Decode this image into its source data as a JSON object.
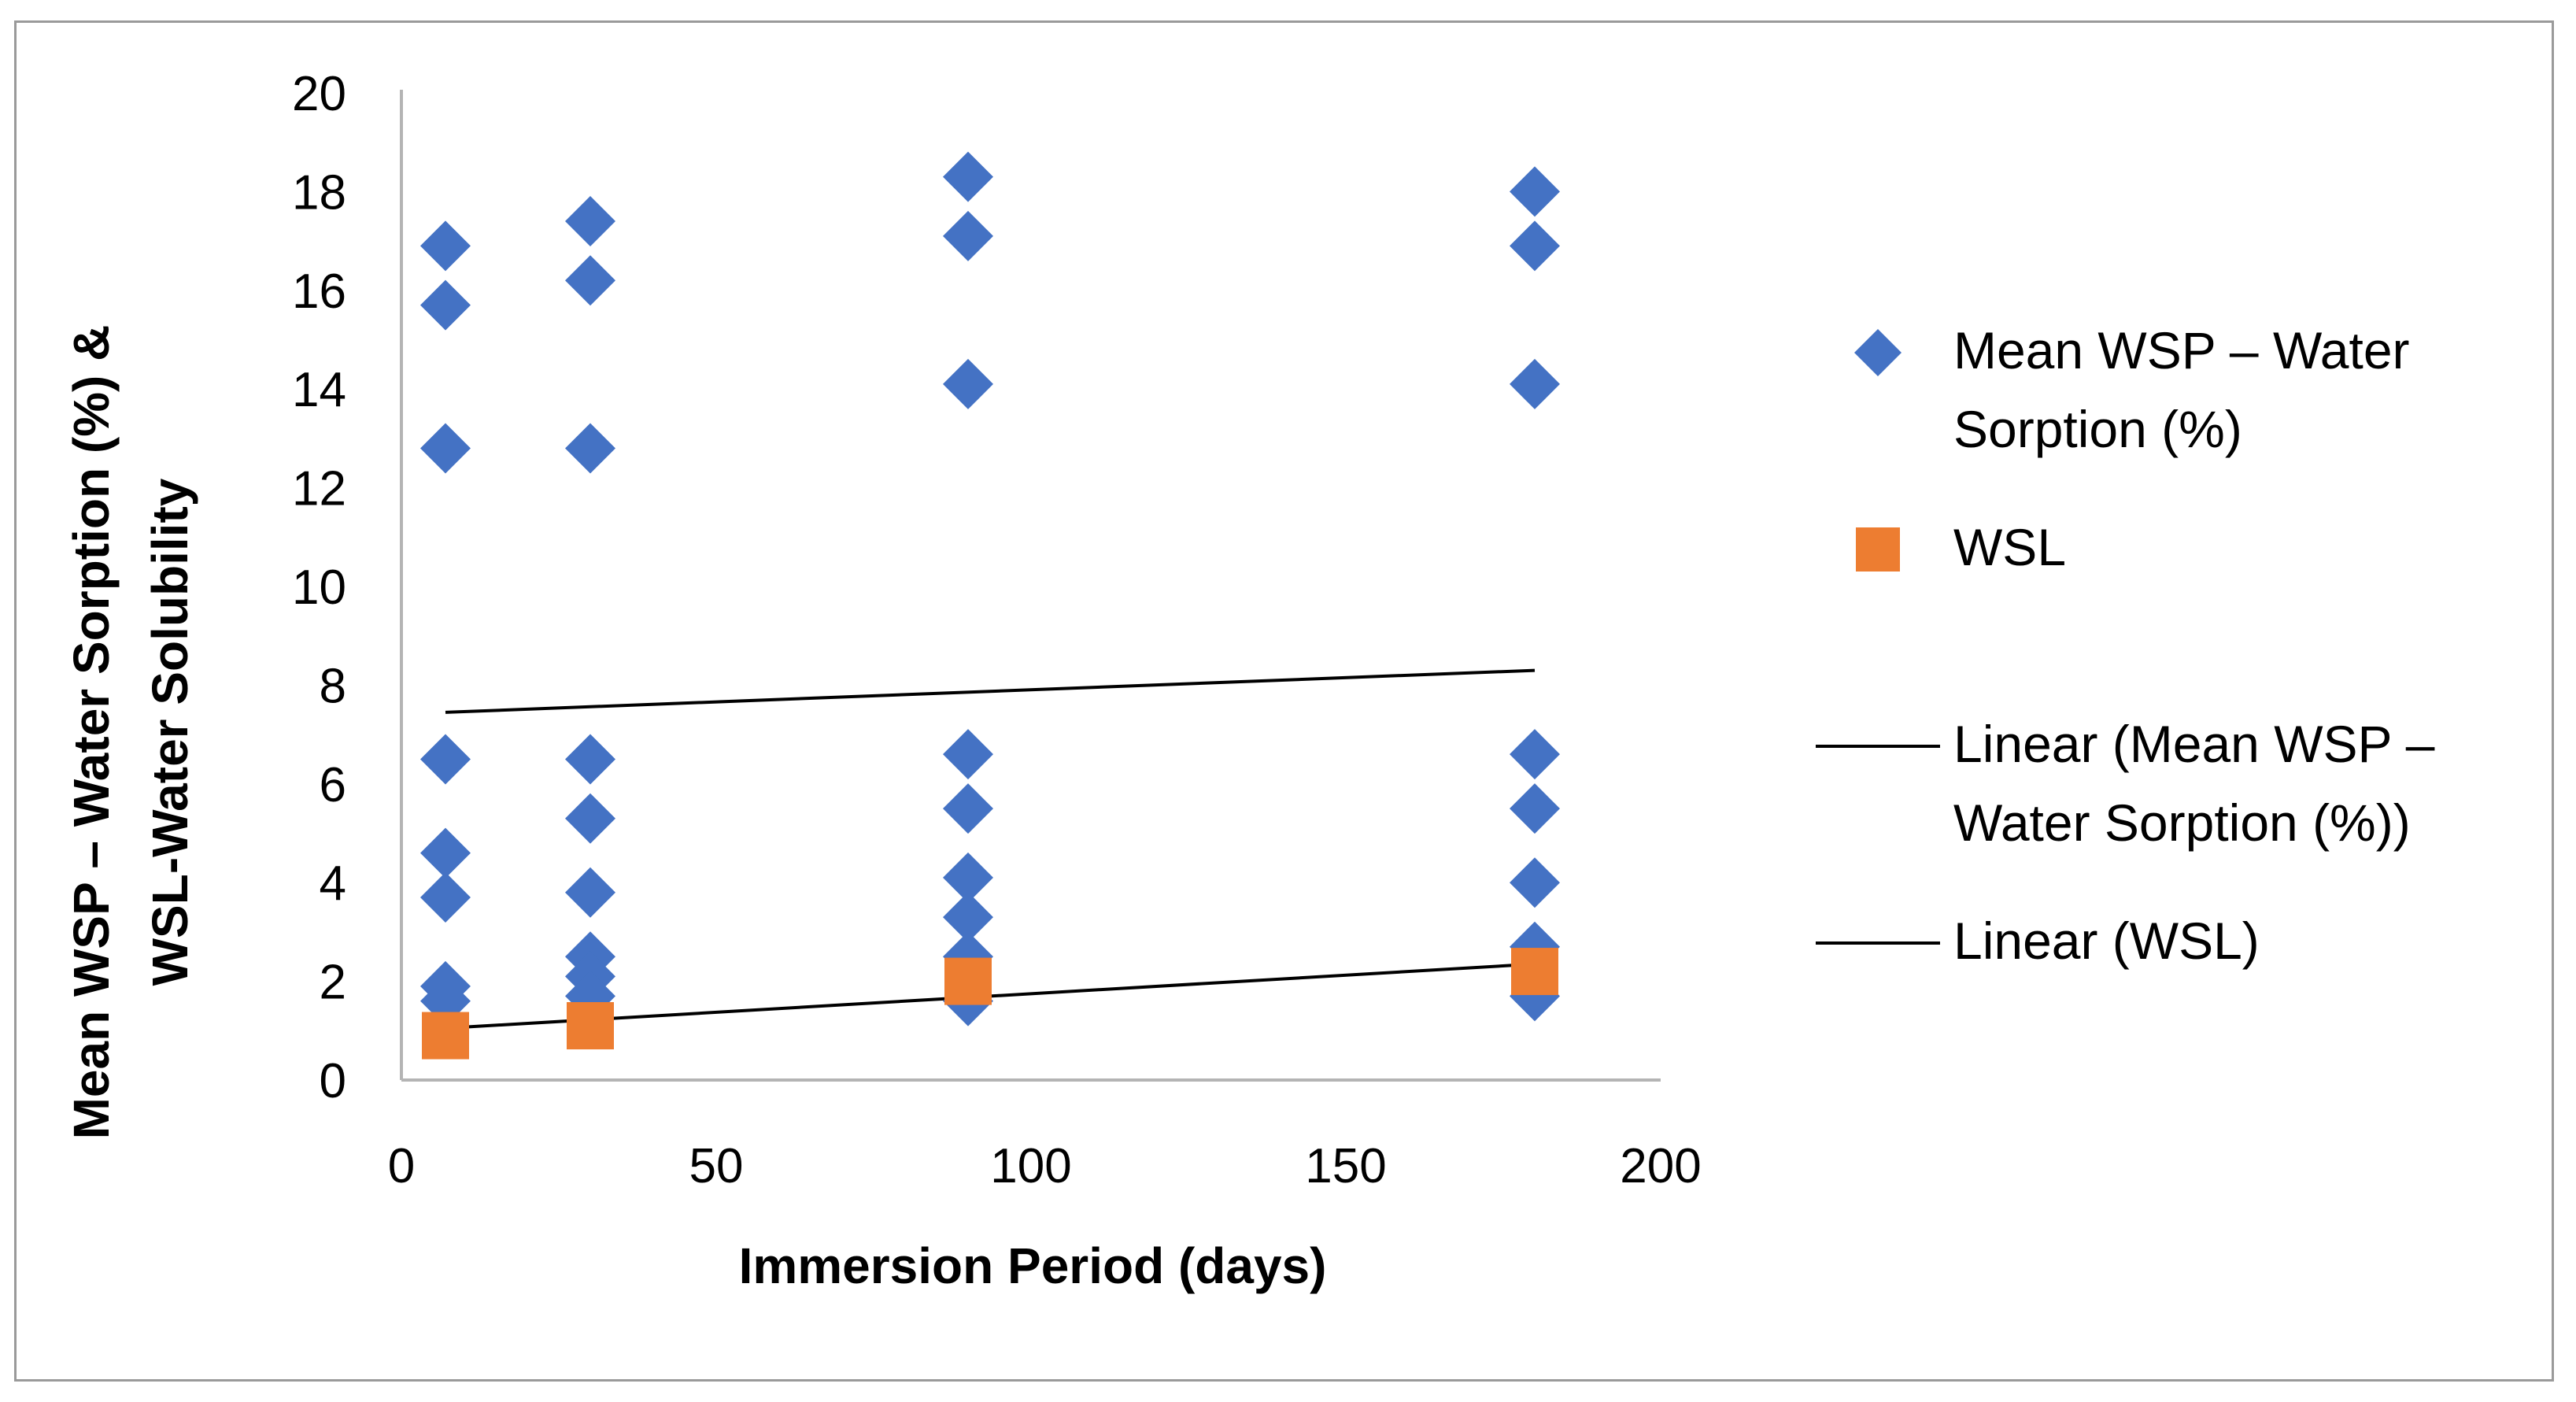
{
  "chart_data": {
    "type": "scatter",
    "xlabel": "Immersion Period (days)",
    "ylabel_lines": [
      "Mean WSP – Water Sorption (%) &",
      "WSL-Water Solubility"
    ],
    "xlim": [
      0,
      200
    ],
    "ylim": [
      0,
      20
    ],
    "xticks": [
      "0",
      "50",
      "100",
      "150",
      "200"
    ],
    "yticks": [
      "0",
      "2",
      "4",
      "6",
      "8",
      "10",
      "12",
      "14",
      "16",
      "18",
      "20"
    ],
    "grid": false,
    "legend_position": "right",
    "colors": {
      "wsp": "#4472c4",
      "wsl": "#ed7d31",
      "trend": "#000000",
      "axis": "#b4b4b4"
    },
    "series": [
      {
        "name": "Mean WSP – Water Sorption (%)",
        "marker": "diamond",
        "points": [
          [
            7,
            16.9
          ],
          [
            7,
            15.7
          ],
          [
            7,
            12.8
          ],
          [
            7,
            6.5
          ],
          [
            7,
            4.6
          ],
          [
            7,
            3.7
          ],
          [
            7,
            1.9
          ],
          [
            7,
            1.6
          ],
          [
            30,
            17.4
          ],
          [
            30,
            16.2
          ],
          [
            30,
            12.8
          ],
          [
            30,
            6.5
          ],
          [
            30,
            5.3
          ],
          [
            30,
            3.8
          ],
          [
            30,
            2.5
          ],
          [
            30,
            2.1
          ],
          [
            30,
            1.7
          ],
          [
            90,
            18.3
          ],
          [
            90,
            17.1
          ],
          [
            90,
            14.1
          ],
          [
            90,
            6.6
          ],
          [
            90,
            5.5
          ],
          [
            90,
            4.1
          ],
          [
            90,
            3.3
          ],
          [
            90,
            2.5
          ],
          [
            90,
            1.6
          ],
          [
            180,
            18.0
          ],
          [
            180,
            16.9
          ],
          [
            180,
            14.1
          ],
          [
            180,
            6.6
          ],
          [
            180,
            5.5
          ],
          [
            180,
            4.0
          ],
          [
            180,
            2.7
          ],
          [
            180,
            1.7
          ]
        ]
      },
      {
        "name": "WSL",
        "marker": "square",
        "points": [
          [
            7,
            0.9
          ],
          [
            30,
            1.1
          ],
          [
            90,
            2.0
          ],
          [
            180,
            2.2
          ]
        ]
      }
    ],
    "trendlines": [
      {
        "name": "Linear (Mean WSP – Water Sorption (%))",
        "x": [
          7,
          180
        ],
        "y": [
          7.45,
          8.3
        ]
      },
      {
        "name": "Linear (WSL)",
        "x": [
          7,
          180
        ],
        "y": [
          1.05,
          2.35
        ]
      }
    ],
    "legend": [
      {
        "lines": [
          "Mean WSP – Water",
          "Sorption (%)"
        ],
        "symbol": "diamond"
      },
      {
        "lines": [
          "WSL"
        ],
        "symbol": "square"
      },
      {
        "lines": [
          "Linear (Mean WSP –",
          "Water Sorption (%))"
        ],
        "symbol": "line"
      },
      {
        "lines": [
          "Linear (WSL)"
        ],
        "symbol": "line"
      }
    ]
  }
}
